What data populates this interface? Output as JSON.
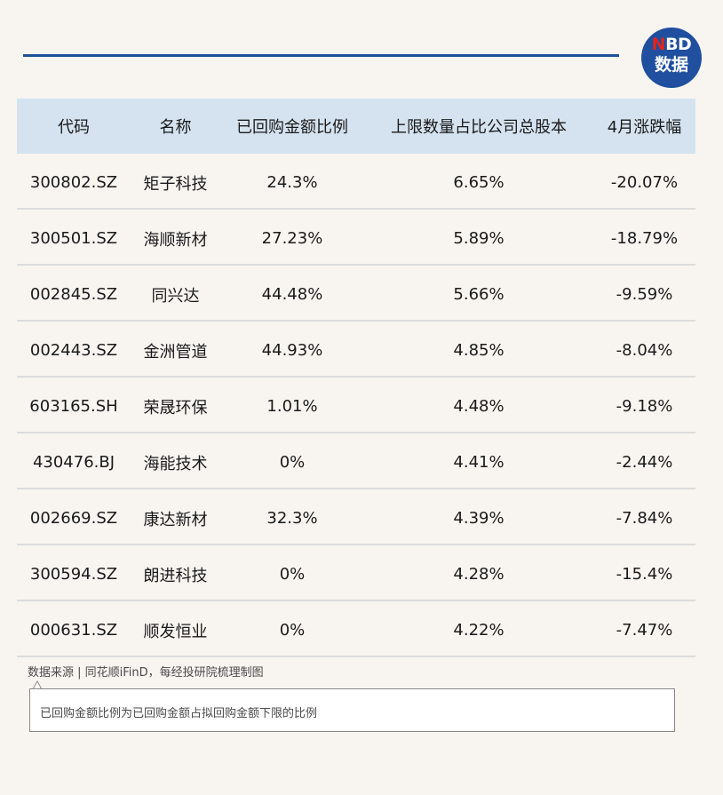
{
  "logo": {
    "line1_n": "N",
    "line1_rest": "BD",
    "line2": "数据"
  },
  "table": {
    "headers": [
      "代码",
      "名称",
      "已回购金额比例",
      "上限数量占比公司总股本",
      "4月涨跌幅"
    ],
    "rows": [
      {
        "code": "300802.SZ",
        "name": "矩子科技",
        "ratio": "24.3%",
        "share": "6.65%",
        "change": "-20.07%"
      },
      {
        "code": "300501.SZ",
        "name": "海顺新材",
        "ratio": "27.23%",
        "share": "5.89%",
        "change": "-18.79%"
      },
      {
        "code": "002845.SZ",
        "name": "同兴达",
        "ratio": "44.48%",
        "share": "5.66%",
        "change": "-9.59%"
      },
      {
        "code": "002443.SZ",
        "name": "金洲管道",
        "ratio": "44.93%",
        "share": "4.85%",
        "change": "-8.04%"
      },
      {
        "code": "603165.SH",
        "name": "荣晟环保",
        "ratio": "1.01%",
        "share": "4.48%",
        "change": "-9.18%"
      },
      {
        "code": "430476.BJ",
        "name": "海能技术",
        "ratio": "0%",
        "share": "4.41%",
        "change": "-2.44%"
      },
      {
        "code": "002669.SZ",
        "name": "康达新材",
        "ratio": "32.3%",
        "share": "4.39%",
        "change": "-7.84%"
      },
      {
        "code": "300594.SZ",
        "name": "朗进科技",
        "ratio": "0%",
        "share": "4.28%",
        "change": "-15.4%"
      },
      {
        "code": "000631.SZ",
        "name": "顺发恒业",
        "ratio": "0%",
        "share": "4.22%",
        "change": "-7.47%"
      }
    ]
  },
  "source": "数据来源 | 同花顺iFinD，每经投研院梳理制图",
  "note": "已回购金额比例为已回购金额占拟回购金额下限的比例",
  "colors": {
    "accent": "#1d4f9c",
    "header_bg": "#d5e3f0",
    "page_bg": "#f8f5f1",
    "logo_red": "#e1251b"
  }
}
